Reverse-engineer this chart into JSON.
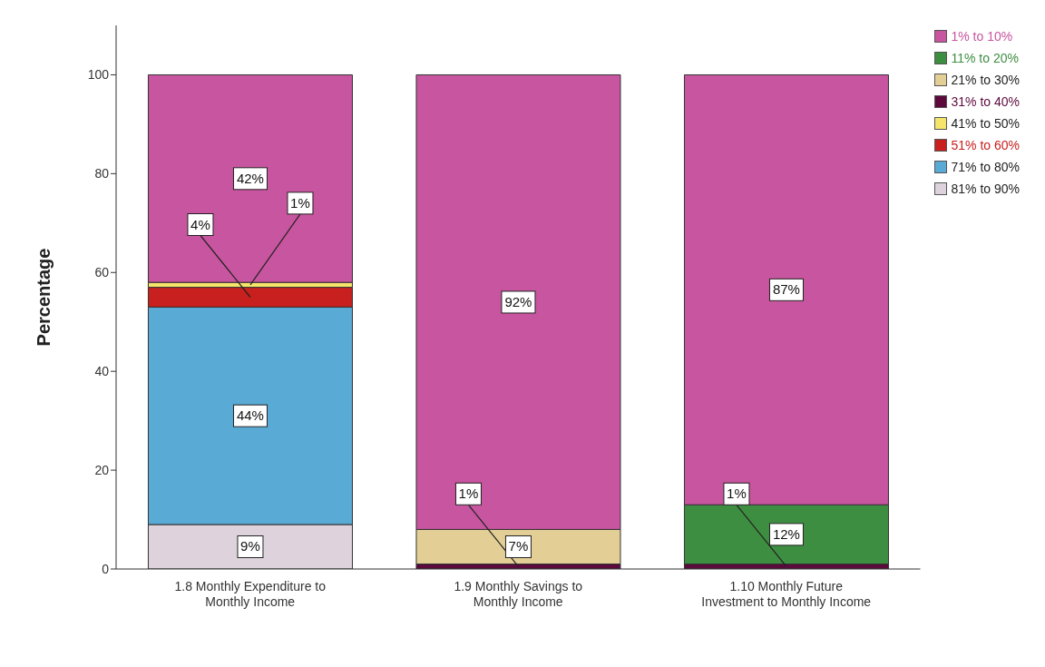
{
  "chart_data": {
    "type": "bar",
    "stacked": true,
    "categories": [
      "1.8 Monthly Expenditure to Monthly Income",
      "1.9 Monthly Savings to Monthly Income",
      "1.10 Monthly Future Investment to Monthly Income"
    ],
    "ylabel": "Percentage",
    "ylim": [
      0,
      110
    ],
    "yticks": [
      0,
      20,
      40,
      60,
      80,
      100
    ],
    "grid": false,
    "legend": "top right",
    "series": [
      {
        "name": "81% to 90%",
        "color": "#ded3dc",
        "values": [
          9,
          null,
          null
        ],
        "value_labels": [
          "9%",
          null,
          null
        ]
      },
      {
        "name": "71% to 80%",
        "color": "#5aaad6",
        "values": [
          44,
          null,
          null
        ],
        "value_labels": [
          "44%",
          null,
          null
        ]
      },
      {
        "name": "51% to 60%",
        "color": "#c8201e",
        "values": [
          4,
          null,
          null
        ],
        "value_labels": [
          "4%",
          null,
          null
        ]
      },
      {
        "name": "41% to 50%",
        "color": "#f5e56b",
        "values": [
          1,
          null,
          null
        ],
        "value_labels": [
          "1%",
          null,
          null
        ]
      },
      {
        "name": "31% to 40%",
        "color": "#5c0a3c",
        "values": [
          null,
          1,
          1
        ],
        "value_labels": [
          null,
          "1%",
          "1%"
        ]
      },
      {
        "name": "21% to 30%",
        "color": "#e3cf96",
        "values": [
          null,
          7,
          null
        ],
        "value_labels": [
          null,
          "7%",
          null
        ]
      },
      {
        "name": "11% to 20%",
        "color": "#3e8e41",
        "values": [
          null,
          null,
          12
        ],
        "value_labels": [
          null,
          null,
          "12%"
        ]
      },
      {
        "name": "1% to 10%",
        "color": "#c8559f",
        "values": [
          42,
          92,
          87
        ],
        "value_labels": [
          "42%",
          "92%",
          "87%"
        ]
      }
    ]
  }
}
